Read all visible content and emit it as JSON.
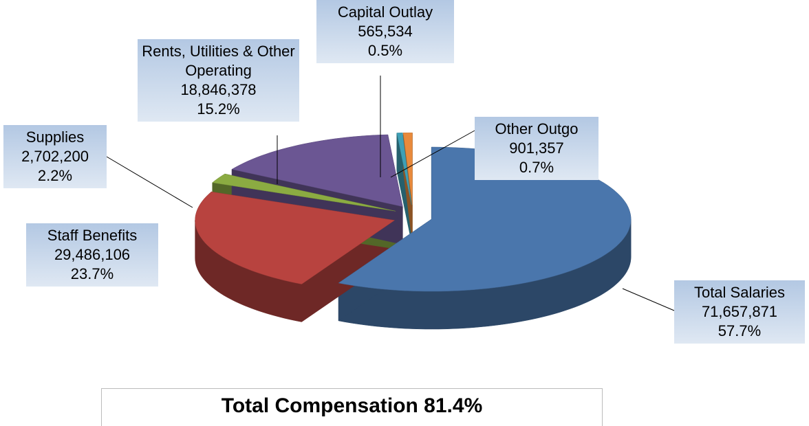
{
  "chart_data": {
    "type": "pie3d",
    "categories": [
      "Total Salaries",
      "Staff Benefits",
      "Supplies",
      "Rents, Utilities & Other Operating",
      "Capital Outlay",
      "Other Outgo"
    ],
    "values": [
      71657871,
      29486106,
      2702200,
      18846378,
      565534,
      901357
    ],
    "value_labels": [
      "71,657,871",
      "29,486,106",
      "2,702,200",
      "18,846,378",
      "565,534",
      "901,357"
    ],
    "percent_labels": [
      "57.7%",
      "23.7%",
      "2.2%",
      "15.2%",
      "0.5%",
      "0.7%"
    ],
    "colors": [
      "#4a76ac",
      "#b8433f",
      "#8bab42",
      "#6b5693",
      "#3fa0b6",
      "#e88a3c"
    ],
    "annotation": "Total Compensation 81.4%"
  }
}
